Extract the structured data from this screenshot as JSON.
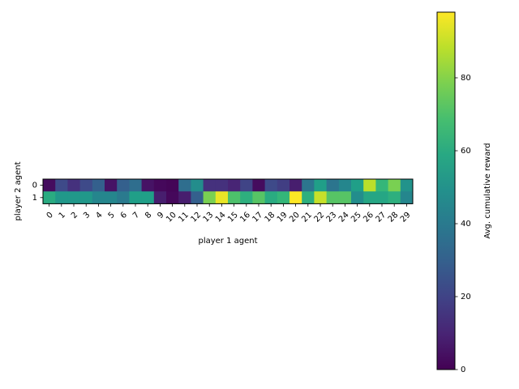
{
  "chart_data": {
    "type": "heatmap",
    "colormap": "viridis",
    "xlabel": "player 1 agent",
    "ylabel": "player 2 agent",
    "colorbar_label": "Avg. cumulative reward",
    "x_categories": [
      "0",
      "1",
      "2",
      "3",
      "4",
      "5",
      "6",
      "7",
      "8",
      "9",
      "10",
      "11",
      "12",
      "13",
      "14",
      "15",
      "16",
      "17",
      "18",
      "19",
      "20",
      "21",
      "22",
      "23",
      "24",
      "25",
      "26",
      "27",
      "28",
      "29"
    ],
    "y_categories": [
      "0",
      "1"
    ],
    "values": [
      [
        3,
        22,
        14,
        22,
        30,
        5,
        30,
        35,
        5,
        2,
        1,
        35,
        48,
        14,
        14,
        10,
        20,
        3,
        22,
        18,
        8,
        38,
        55,
        38,
        45,
        55,
        88,
        65,
        78,
        50
      ],
      [
        60,
        52,
        52,
        52,
        45,
        45,
        40,
        55,
        55,
        8,
        2,
        8,
        30,
        78,
        95,
        70,
        62,
        72,
        60,
        65,
        98,
        62,
        90,
        72,
        72,
        48,
        58,
        58,
        62,
        45
      ]
    ],
    "vmin": 0,
    "vmax": 98,
    "colorbar_ticks": [
      "0",
      "20",
      "40",
      "60",
      "80"
    ],
    "colorbar_tick_values": [
      0,
      20,
      40,
      60,
      80
    ]
  }
}
